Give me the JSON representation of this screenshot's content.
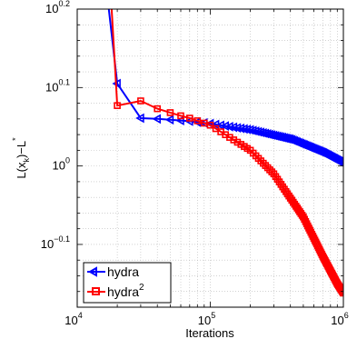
{
  "chart_data": {
    "type": "line",
    "xlabel": "Iterations",
    "ylabel": "L(x_k)−L*",
    "ylabel_parts": {
      "base": "L(x",
      "sub": "k",
      "mid": ")−L",
      "sup": "*"
    },
    "xscale": "log",
    "yscale": "log",
    "xlim": [
      10000,
      1000000
    ],
    "ylim_log10": [
      -0.18,
      0.2
    ],
    "grid": true,
    "legend_position": "bottom-left",
    "x_ticks": [
      {
        "base": "10",
        "exp": "4"
      },
      {
        "base": "10",
        "exp": "5"
      },
      {
        "base": "10",
        "exp": "6"
      }
    ],
    "y_ticks": [
      {
        "base": "10",
        "exp": "0.2",
        "log10": 0.2
      },
      {
        "base": "10",
        "exp": "0.1",
        "log10": 0.1
      },
      {
        "base": "10",
        "exp": "",
        "text": "10",
        "exp0": "0",
        "log10": 0.0
      },
      {
        "base": "10",
        "exp": "−0.1",
        "log10": -0.1
      }
    ],
    "series": [
      {
        "name": "hydra",
        "color": "#0000ff",
        "marker": "triangle-left",
        "x": [
          17000,
          20000,
          30000,
          40000,
          50000,
          60000,
          70000,
          100000,
          200000,
          400000,
          700000,
          1000000
        ],
        "y_log10": [
          0.21,
          0.105,
          0.061,
          0.06,
          0.059,
          0.058,
          0.057,
          0.054,
          0.046,
          0.034,
          0.017,
          0.003
        ]
      },
      {
        "name": "hydra",
        "name_sup": "2",
        "color": "#ff0000",
        "marker": "square",
        "x": [
          18000,
          20000,
          30000,
          40000,
          50000,
          60000,
          70000,
          100000,
          200000,
          300000,
          500000,
          700000,
          900000,
          1000000
        ],
        "y_log10": [
          0.21,
          0.077,
          0.083,
          0.073,
          0.068,
          0.064,
          0.061,
          0.052,
          0.02,
          -0.01,
          -0.065,
          -0.115,
          -0.15,
          -0.162
        ]
      }
    ]
  }
}
